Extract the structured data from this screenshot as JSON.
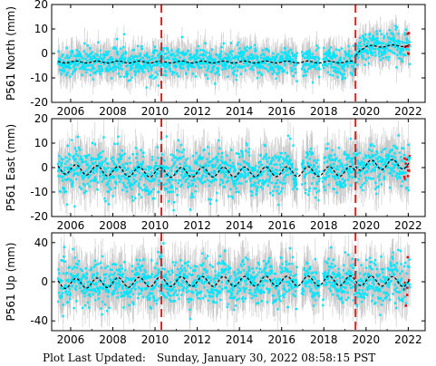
{
  "footer": {
    "label": "Plot Last Updated:",
    "timestamp": "Sunday, January 30, 2022 08:58:15 PST"
  },
  "colors": {
    "points": "#00e5ff",
    "error_bars": "#b4b4b4",
    "trend": "#000000",
    "event_lines": "#dd2222",
    "recent_points": "#dd0000"
  },
  "chart_data": [
    {
      "type": "scatter",
      "station": "P561",
      "component": "North",
      "ylabel": "P561 North (mm)",
      "xlim": [
        2005.1,
        2022.8
      ],
      "ylim": [
        -20,
        20
      ],
      "yticks": [
        -20,
        -10,
        0,
        10,
        20
      ],
      "xticks": [
        2006,
        2008,
        2010,
        2012,
        2014,
        2016,
        2018,
        2020,
        2022
      ],
      "event_lines": [
        2010.3,
        2019.5
      ],
      "data_start": 2005.4,
      "data_end": 2022.08,
      "gaps": [
        [
          2016.75,
          2016.95
        ],
        [
          2017.8,
          2017.95
        ]
      ],
      "trend_segments": [
        {
          "x": [
            2005.4,
            2019.5
          ],
          "y": [
            -3.5,
            -3.5
          ]
        },
        {
          "x": [
            2019.5,
            2019.7,
            2020.0,
            2022.08
          ],
          "y": [
            -1.0,
            1.5,
            2.8,
            3.3
          ]
        }
      ],
      "seasonal_amplitude": 0.4,
      "point_spread": 3.0,
      "error_bar": 5.0,
      "recent_red_range": [
        2021.8,
        2022.08
      ]
    },
    {
      "type": "scatter",
      "station": "P561",
      "component": "East",
      "ylabel": "P561 East (mm)",
      "xlim": [
        2005.1,
        2022.8
      ],
      "ylim": [
        -20,
        20
      ],
      "yticks": [
        -20,
        -10,
        0,
        10,
        20
      ],
      "xticks": [
        2006,
        2008,
        2010,
        2012,
        2014,
        2016,
        2018,
        2020,
        2022
      ],
      "event_lines": [
        2010.3,
        2019.5
      ],
      "data_start": 2005.4,
      "data_end": 2022.08,
      "gaps": [
        [
          2016.75,
          2016.95
        ],
        [
          2017.8,
          2017.95
        ]
      ],
      "trend_segments": [
        {
          "x": [
            2005.4,
            2008.0,
            2010.3,
            2019.5
          ],
          "y": [
            -0.5,
            -1.5,
            -2.0,
            -1.5
          ]
        },
        {
          "x": [
            2019.5,
            2019.8,
            2022.08
          ],
          "y": [
            0.5,
            1.0,
            1.5
          ]
        }
      ],
      "seasonal_amplitude": 2.0,
      "point_spread": 4.5,
      "error_bar": 7.0,
      "recent_red_range": [
        2021.8,
        2022.08
      ]
    },
    {
      "type": "scatter",
      "station": "P561",
      "component": "Up",
      "ylabel": "P561 Up (mm)",
      "xlim": [
        2005.1,
        2022.8
      ],
      "ylim": [
        -50,
        50
      ],
      "yticks": [
        -40,
        0,
        40
      ],
      "xticks": [
        2006,
        2008,
        2010,
        2012,
        2014,
        2016,
        2018,
        2020,
        2022
      ],
      "event_lines": [
        2010.3,
        2019.5
      ],
      "data_start": 2005.4,
      "data_end": 2022.08,
      "gaps": [
        [
          2016.75,
          2016.95
        ],
        [
          2017.8,
          2017.95
        ]
      ],
      "trend_segments": [
        {
          "x": [
            2005.4,
            2010.3,
            2019.5,
            2022.08
          ],
          "y": [
            -2.0,
            0.0,
            1.0,
            0.0
          ]
        }
      ],
      "seasonal_amplitude": 5.0,
      "point_spread": 11.0,
      "error_bar": 18.0,
      "recent_red_range": [
        2021.8,
        2022.08
      ]
    }
  ]
}
